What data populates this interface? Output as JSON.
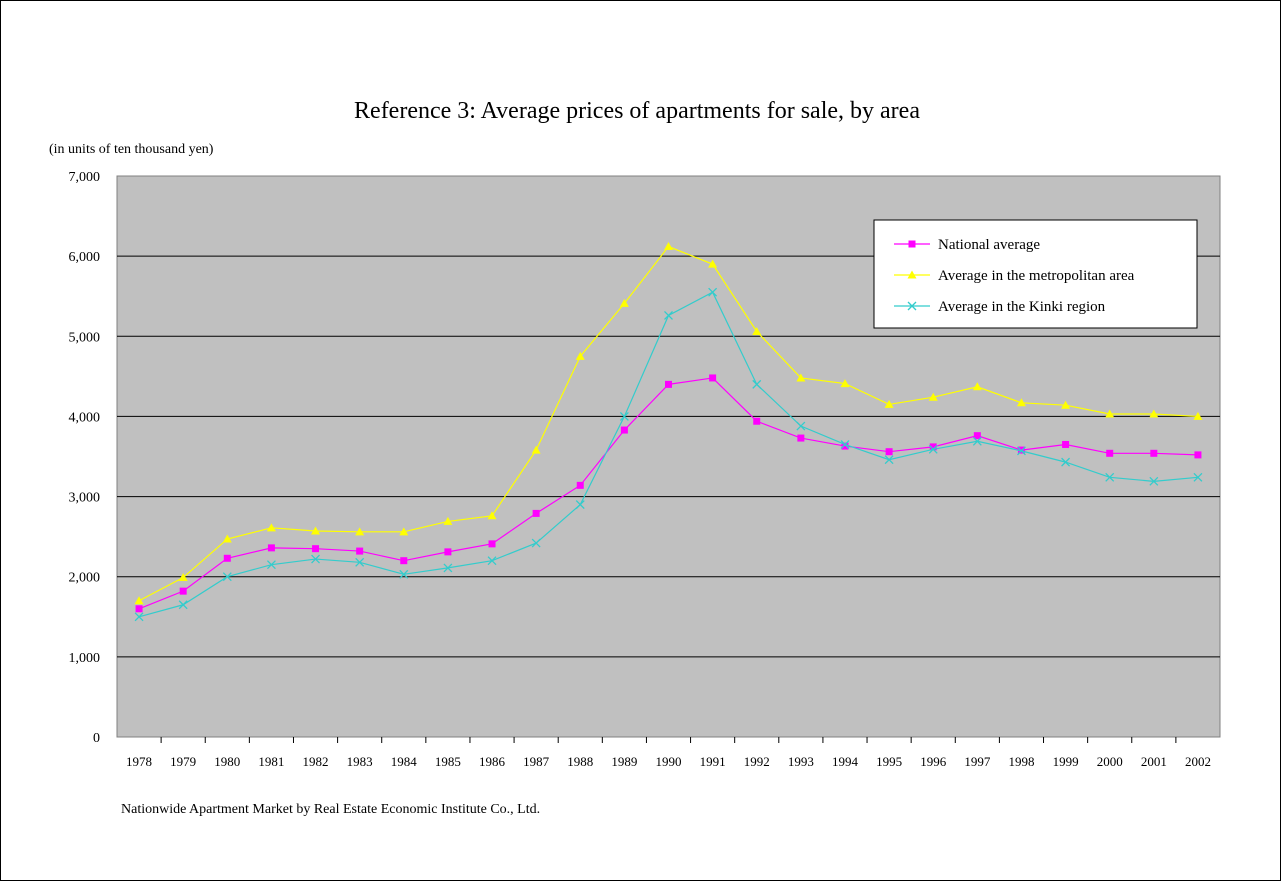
{
  "chart_data": {
    "type": "line",
    "title": "Reference 3: Average prices of apartments for sale, by area",
    "unit_label": "(in units of ten thousand yen)",
    "source": "Nationwide Apartment Market by Real Estate Economic Institute Co., Ltd.",
    "categories": [
      "1978",
      "1979",
      "1980",
      "1981",
      "1982",
      "1983",
      "1984",
      "1985",
      "1986",
      "1987",
      "1988",
      "1989",
      "1990",
      "1991",
      "1992",
      "1993",
      "1994",
      "1995",
      "1996",
      "1997",
      "1998",
      "1999",
      "2000",
      "2001",
      "2002"
    ],
    "ylim": [
      0,
      7000
    ],
    "yticks": [
      0,
      1000,
      2000,
      3000,
      4000,
      5000,
      6000,
      7000
    ],
    "ytick_labels": [
      "0",
      "1,000",
      "2,000",
      "3,000",
      "4,000",
      "5,000",
      "6,000",
      "7,000"
    ],
    "grid": true,
    "plot_background": "#c0c0c0",
    "legend_position": "top-right",
    "series": [
      {
        "name": "National average",
        "color": "#ff00ff",
        "marker": "square",
        "values": [
          1600,
          1820,
          2230,
          2360,
          2350,
          2320,
          2200,
          2310,
          2410,
          2790,
          3140,
          3830,
          4400,
          4480,
          3940,
          3730,
          3630,
          3560,
          3620,
          3760,
          3580,
          3650,
          3540,
          3540,
          3520
        ]
      },
      {
        "name": "Average in the metropolitan area",
        "color": "#ffff00",
        "marker": "triangle",
        "values": [
          1700,
          1990,
          2470,
          2610,
          2570,
          2560,
          2560,
          2690,
          2760,
          3580,
          4750,
          5410,
          6120,
          5900,
          5060,
          4480,
          4410,
          4150,
          4240,
          4370,
          4170,
          4140,
          4030,
          4030,
          4000
        ]
      },
      {
        "name": "Average in the Kinki region",
        "color": "#33cccc",
        "marker": "x",
        "values": [
          1500,
          1650,
          2000,
          2150,
          2220,
          2180,
          2030,
          2110,
          2200,
          2420,
          2900,
          4000,
          5260,
          5550,
          4400,
          3880,
          3650,
          3460,
          3590,
          3690,
          3570,
          3430,
          3240,
          3190,
          3240
        ]
      }
    ]
  }
}
